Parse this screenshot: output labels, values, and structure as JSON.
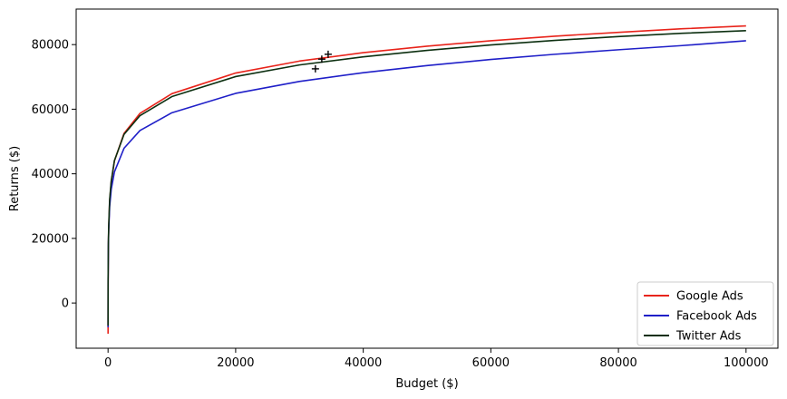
{
  "chart_data": {
    "type": "line",
    "xlabel": "Budget ($)",
    "ylabel": "Returns ($)",
    "xlim": [
      -5000,
      105000
    ],
    "ylim": [
      -14000,
      91000
    ],
    "xticks": [
      0,
      20000,
      40000,
      60000,
      80000,
      100000
    ],
    "yticks": [
      0,
      20000,
      40000,
      60000,
      80000
    ],
    "grid": false,
    "legend_position": "bottom-right",
    "series": [
      {
        "name": "Google Ads",
        "color": "#e8241b",
        "x": [
          1,
          10,
          50,
          100,
          250,
          500,
          1000,
          2500,
          5000,
          10000,
          20000,
          30000,
          40000,
          50000,
          60000,
          70000,
          80000,
          90000,
          100000
        ],
        "y": [
          -9500,
          6000,
          17700,
          23000,
          31500,
          37500,
          44000,
          52500,
          58700,
          64800,
          71200,
          74900,
          77500,
          79500,
          81200,
          82600,
          83800,
          84900,
          85800
        ],
        "marker": {
          "x": 34500,
          "y": 77000
        }
      },
      {
        "name": "Facebook Ads",
        "color": "#1f1fc8",
        "x": [
          1,
          10,
          50,
          100,
          250,
          500,
          1000,
          2500,
          5000,
          10000,
          20000,
          30000,
          40000,
          50000,
          60000,
          70000,
          80000,
          90000,
          100000
        ],
        "y": [
          -7500,
          7000,
          17600,
          22500,
          29800,
          35200,
          40600,
          47900,
          53400,
          58900,
          64900,
          68600,
          71300,
          73500,
          75400,
          77000,
          78400,
          79700,
          81200
        ],
        "marker": {
          "x": 32500,
          "y": 72500
        }
      },
      {
        "name": "Twitter Ads",
        "color": "#0c2f10",
        "x": [
          1,
          10,
          50,
          100,
          250,
          500,
          1000,
          2500,
          5000,
          10000,
          20000,
          30000,
          40000,
          50000,
          60000,
          70000,
          80000,
          90000,
          100000
        ],
        "y": [
          -7000,
          7500,
          18500,
          23800,
          32000,
          37800,
          44100,
          52200,
          58000,
          63900,
          70100,
          73700,
          76200,
          78200,
          79900,
          81300,
          82500,
          83500,
          84300
        ],
        "marker": {
          "x": 33500,
          "y": 75500
        }
      }
    ]
  }
}
